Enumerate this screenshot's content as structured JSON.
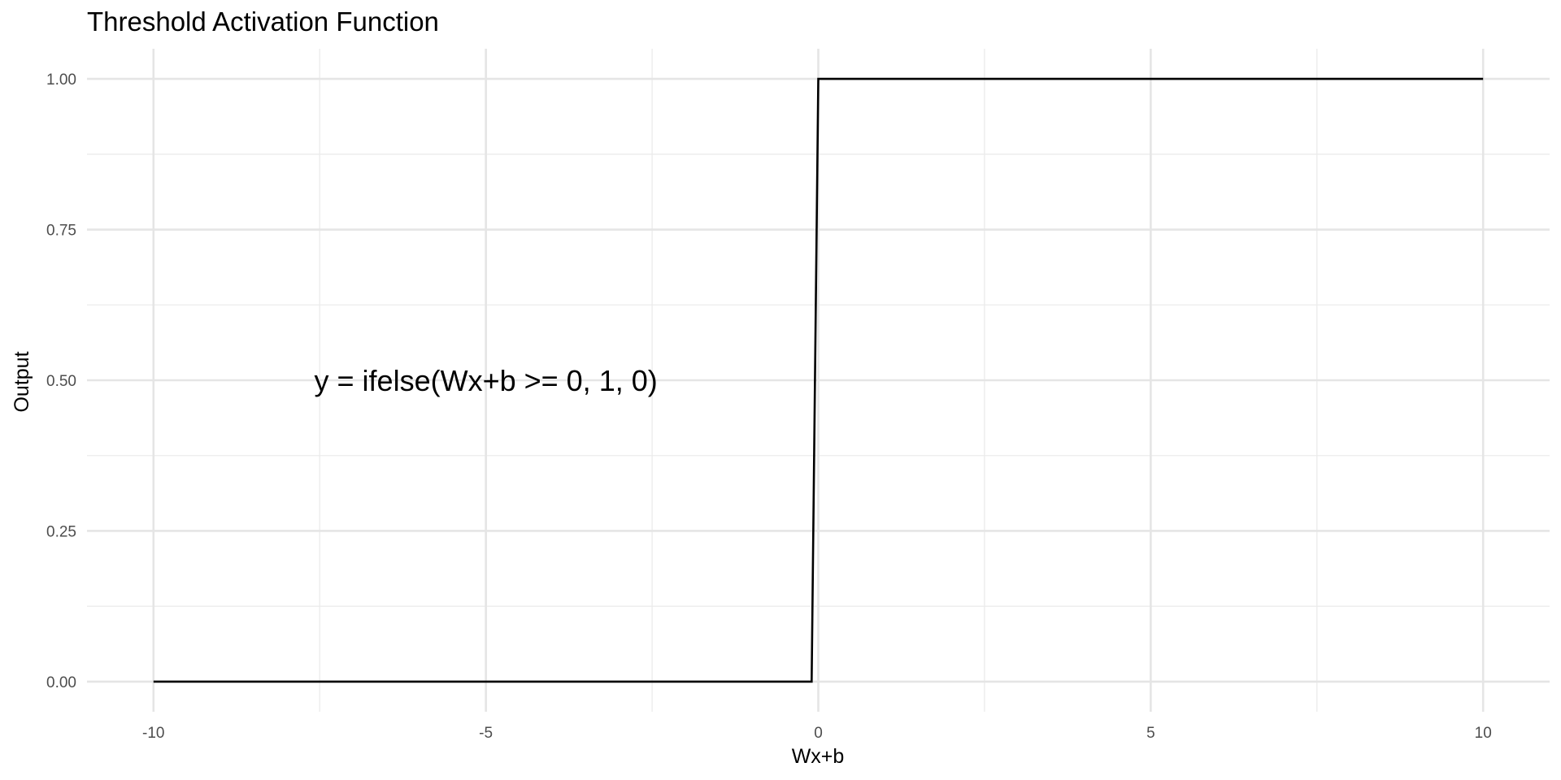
{
  "chart_data": {
    "type": "line",
    "title": "Threshold Activation Function",
    "xlabel": "Wx+b",
    "ylabel": "Output",
    "xlim": [
      -11,
      11
    ],
    "ylim": [
      -0.05,
      1.05
    ],
    "x_ticks": [
      -10,
      -5,
      0,
      5,
      10
    ],
    "x_tick_labels": [
      "-10",
      "-5",
      "0",
      "5",
      "10"
    ],
    "y_ticks": [
      0,
      0.25,
      0.5,
      0.75,
      1
    ],
    "y_tick_labels": [
      "0.00",
      "0.25",
      "0.50",
      "0.75",
      "1.00"
    ],
    "grid": true,
    "legend": "none",
    "series": [
      {
        "x": [
          -10,
          -0.1,
          0,
          10
        ],
        "y": [
          0,
          0,
          1,
          1
        ],
        "color": "#000000"
      }
    ],
    "annotations": [
      {
        "text": "y = ifelse(Wx+b >= 0, 1, 0)",
        "x": -5,
        "y": 0.5
      }
    ]
  }
}
